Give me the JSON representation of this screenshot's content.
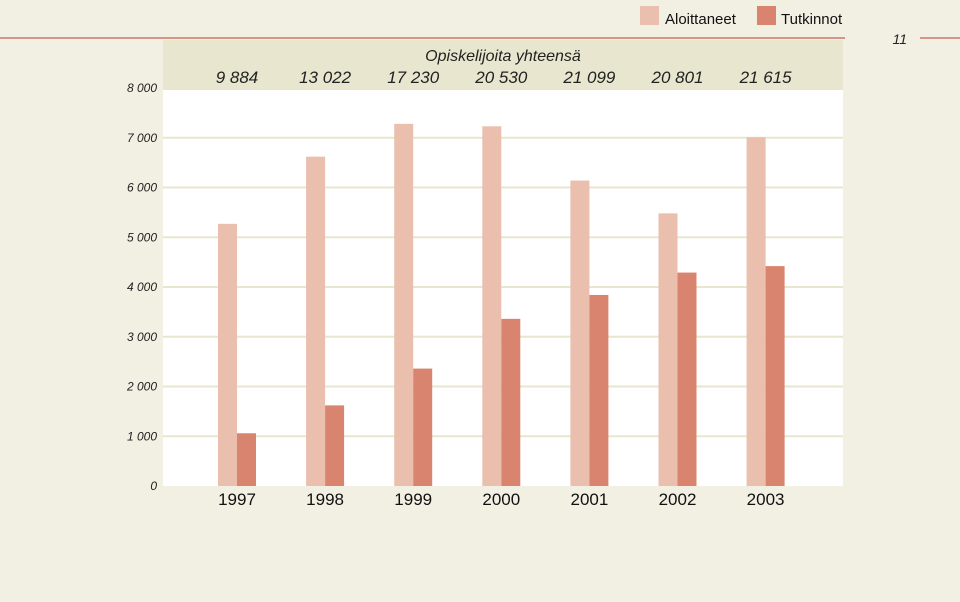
{
  "page": {
    "number": "11"
  },
  "colors": {
    "background": "#f2efe3",
    "plot_background": "#ffffff",
    "band_background": "#e8e6ce",
    "gridline": "#e8e6ce",
    "rule": "#c0392b",
    "aloittaneet": "#eabfae",
    "tutkinnot": "#d9846f"
  },
  "chart_data": {
    "type": "bar",
    "title": "",
    "xlabel": "",
    "ylabel": "",
    "categories": [
      "1997",
      "1998",
      "1999",
      "2000",
      "2001",
      "2002",
      "2003"
    ],
    "series": [
      {
        "name": "Aloittaneet",
        "values": [
          5270,
          6620,
          7280,
          7230,
          6140,
          5480,
          7010
        ]
      },
      {
        "name": "Tutkinnot",
        "values": [
          1060,
          1620,
          2360,
          3360,
          3840,
          4290,
          4420
        ]
      }
    ],
    "ylim": [
      0,
      8000
    ],
    "yticks": [
      0,
      1000,
      2000,
      3000,
      4000,
      5000,
      6000,
      7000,
      8000
    ],
    "ytick_labels": [
      "0",
      "1 000",
      "2 000",
      "3 000",
      "4 000",
      "5 000",
      "6 000",
      "7 000",
      "8 000"
    ],
    "grid": true,
    "legend": "top-right",
    "totals_band": {
      "title": "Opiskelijoita yhteensä",
      "values": [
        "9 884",
        "13 022",
        "17 230",
        "20 530",
        "21 099",
        "20 801",
        "21 615"
      ]
    }
  }
}
